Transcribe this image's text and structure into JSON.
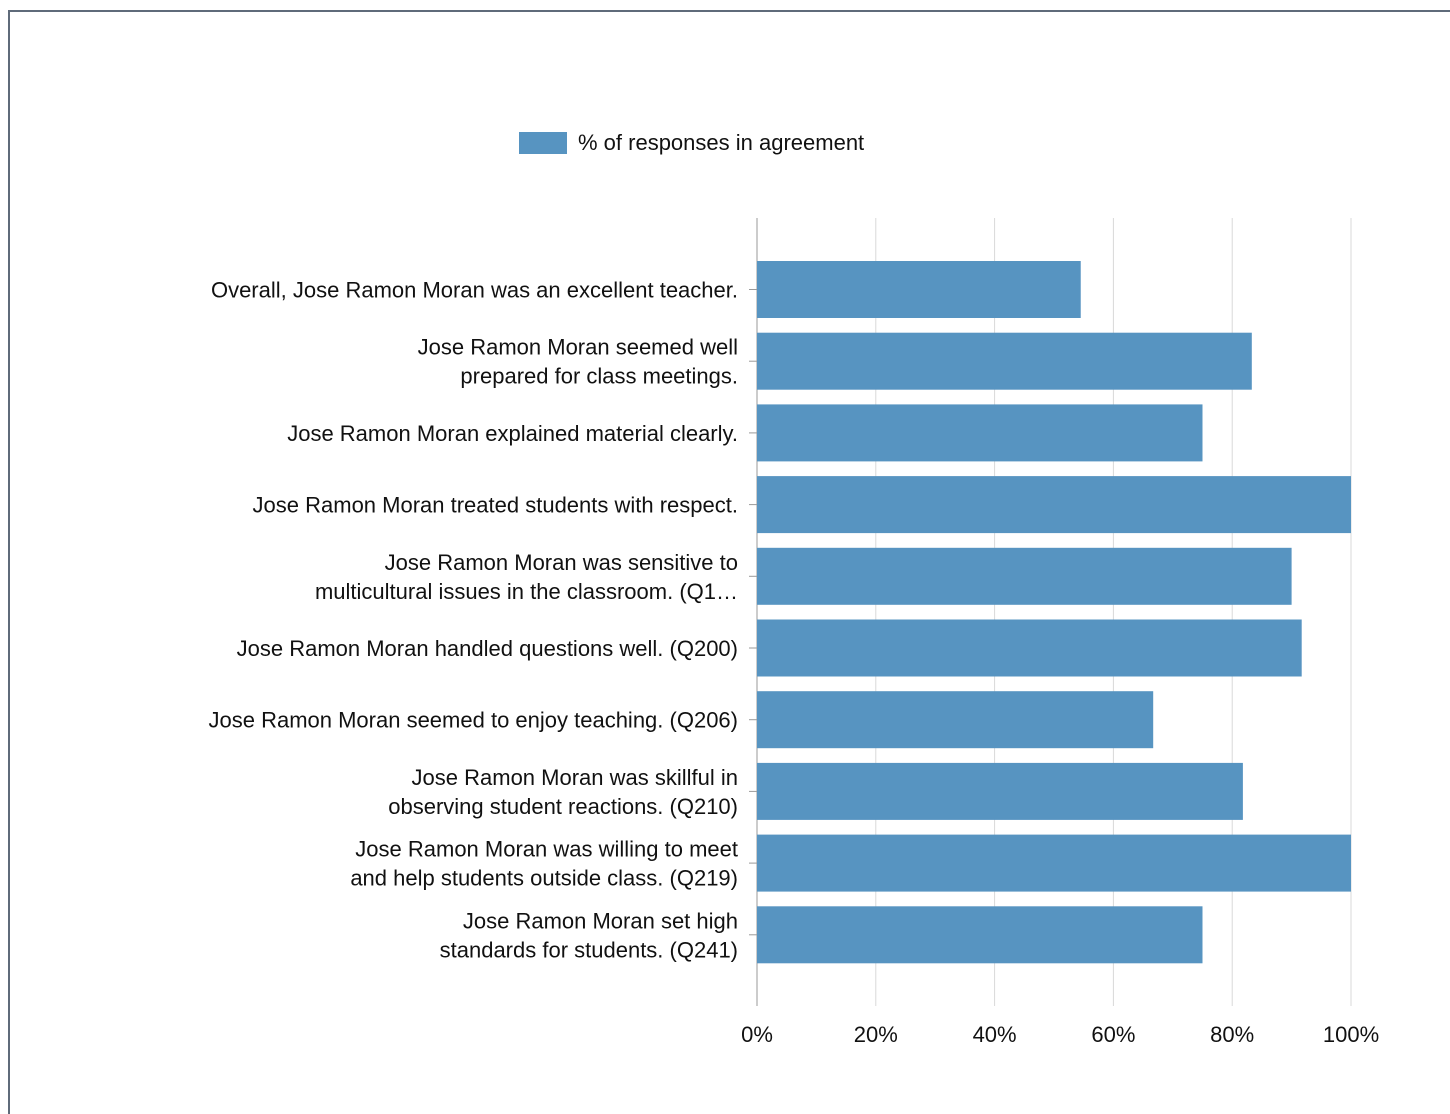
{
  "chart_data": {
    "type": "bar",
    "orientation": "horizontal",
    "categories": [
      "Overall, Jose Ramon Moran was an excellent teacher.",
      "Jose Ramon Moran seemed well prepared for class meetings.",
      "Jose Ramon Moran explained material clearly.",
      "Jose Ramon Moran treated students with respect.",
      "Jose Ramon Moran was sensitive to multicultural issues in the classroom. (Q1…",
      "Jose Ramon Moran handled questions well. (Q200)",
      "Jose Ramon Moran seemed to enjoy teaching. (Q206)",
      "Jose Ramon Moran was skillful in observing student reactions. (Q210)",
      "Jose Ramon Moran was willing to meet and help students outside class. (Q219)",
      "Jose Ramon Moran set high standards for students. (Q241)"
    ],
    "category_lines": [
      [
        "Overall, Jose Ramon Moran was an excellent teacher."
      ],
      [
        "Jose Ramon Moran seemed well",
        "prepared for class meetings."
      ],
      [
        "Jose Ramon Moran explained material clearly."
      ],
      [
        "Jose Ramon Moran treated students with respect."
      ],
      [
        "Jose Ramon Moran was sensitive to",
        "multicultural issues in the classroom. (Q1…"
      ],
      [
        "Jose Ramon Moran handled questions well. (Q200)"
      ],
      [
        "Jose Ramon Moran seemed to enjoy teaching. (Q206)"
      ],
      [
        "Jose Ramon Moran was skillful in",
        "observing student reactions. (Q210)"
      ],
      [
        "Jose Ramon Moran was willing to meet",
        "and help students outside class. (Q219)"
      ],
      [
        "Jose Ramon Moran set high",
        "standards for students. (Q241)"
      ]
    ],
    "series": [
      {
        "name": "% of responses in agreement",
        "color": "#5794c1",
        "values": [
          54.5,
          83.3,
          75,
          100,
          90,
          91.7,
          66.7,
          81.8,
          100,
          75
        ]
      }
    ],
    "xlim": [
      0,
      100
    ],
    "xticks": [
      "0%",
      "20%",
      "40%",
      "60%",
      "80%",
      "100%"
    ],
    "xtick_values": [
      0,
      20,
      40,
      60,
      80,
      100
    ],
    "grid": true,
    "legend_position": "top-center",
    "title": "",
    "xlabel": "",
    "ylabel": ""
  }
}
